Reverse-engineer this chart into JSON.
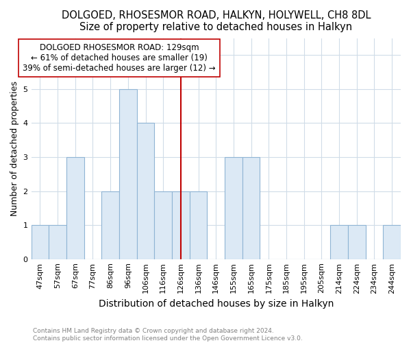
{
  "title": "DOLGOED, RHOSESMOR ROAD, HALKYN, HOLYWELL, CH8 8DL",
  "subtitle": "Size of property relative to detached houses in Halkyn",
  "xlabel": "Distribution of detached houses by size in Halkyn",
  "ylabel": "Number of detached properties",
  "categories": [
    "47sqm",
    "57sqm",
    "67sqm",
    "77sqm",
    "86sqm",
    "96sqm",
    "106sqm",
    "116sqm",
    "126sqm",
    "136sqm",
    "146sqm",
    "155sqm",
    "165sqm",
    "175sqm",
    "185sqm",
    "195sqm",
    "205sqm",
    "214sqm",
    "224sqm",
    "234sqm",
    "244sqm"
  ],
  "values": [
    1,
    1,
    3,
    0,
    2,
    5,
    4,
    2,
    2,
    2,
    0,
    3,
    3,
    0,
    0,
    0,
    0,
    1,
    1,
    0,
    1
  ],
  "bar_color": "#dce9f5",
  "bar_edge_color": "#8fb4d4",
  "property_line_x": 8,
  "property_line_color": "#c00000",
  "annotation_title": "DOLGOED RHOSESMOR ROAD: 129sqm",
  "annotation_line1": "← 61% of detached houses are smaller (19)",
  "annotation_line2": "39% of semi-detached houses are larger (12) →",
  "ylim": [
    0,
    6.5
  ],
  "yticks": [
    0,
    1,
    2,
    3,
    4,
    5,
    6
  ],
  "footnote1": "Contains HM Land Registry data © Crown copyright and database right 2024.",
  "footnote2": "Contains public sector information licensed under the Open Government Licence v3.0.",
  "background_color": "#ffffff",
  "grid_color": "#d0dce8",
  "title_fontsize": 10.5,
  "subtitle_fontsize": 9.5,
  "xlabel_fontsize": 10,
  "ylabel_fontsize": 9,
  "tick_fontsize": 8,
  "annot_fontsize": 8.5,
  "footnote_fontsize": 6.5
}
